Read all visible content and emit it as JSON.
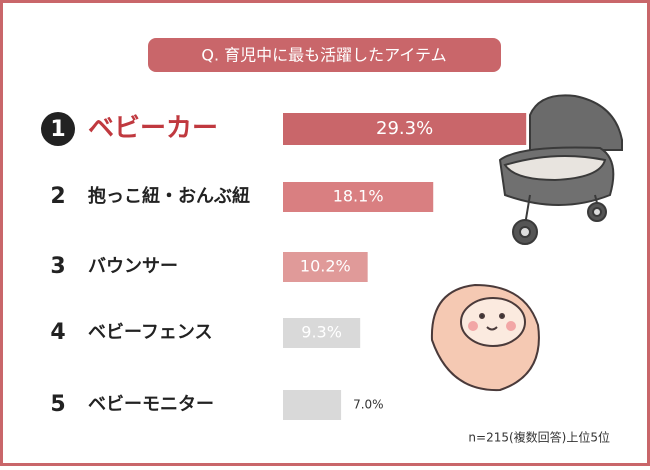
{
  "chart_data": {
    "type": "bar",
    "title": "Q. 育児中に最も活躍したアイテム",
    "ranks": [
      1,
      2,
      3,
      4,
      5
    ],
    "categories": [
      "ベビーカー",
      "抱っこ紐・おんぶ紐",
      "バウンサー",
      "ベビーフェンス",
      "ベビーモニター"
    ],
    "values": [
      29.3,
      18.1,
      10.2,
      9.3,
      7.0
    ],
    "value_labels": [
      "29.3%",
      "18.1%",
      "10.2%",
      "9.3%",
      "7.0%"
    ],
    "colors": [
      "#c9666a",
      "#d97f81",
      "#e09a99",
      "#d9d9d9",
      "#d9d9d9"
    ],
    "note": "n=215(複数回答)上位5位"
  }
}
